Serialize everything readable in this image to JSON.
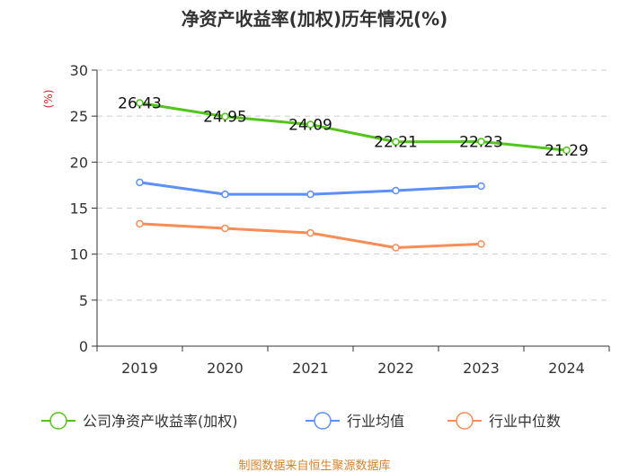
{
  "chart_data": {
    "type": "line",
    "title": "净资产收益率(加权)历年情况(%)",
    "ylabel": "(%)",
    "xlabel": "",
    "ylim": [
      0,
      30
    ],
    "yticks": [
      "0",
      "5",
      "10",
      "15",
      "20",
      "25",
      "30"
    ],
    "categories": [
      "2019",
      "2020",
      "2021",
      "2022",
      "2023",
      "2024"
    ],
    "grid": "horizontal dashed",
    "legend_position": "bottom",
    "series": [
      {
        "name": "公司净资产收益率(加权)",
        "color": "#52c41a",
        "values": [
          26.43,
          24.95,
          24.09,
          22.21,
          22.23,
          21.29
        ],
        "labels": [
          "26.43",
          "24.95",
          "24.09",
          "22.21",
          "22.23",
          "21.29"
        ]
      },
      {
        "name": "行业均值",
        "color": "#5b8ff9",
        "values": [
          17.8,
          16.5,
          16.5,
          16.9,
          17.4,
          null
        ]
      },
      {
        "name": "行业中位数",
        "color": "#fa8c56",
        "values": [
          13.3,
          12.8,
          12.3,
          10.7,
          11.1,
          null
        ]
      }
    ],
    "source": "制图数据来自恒生聚源数据库"
  }
}
